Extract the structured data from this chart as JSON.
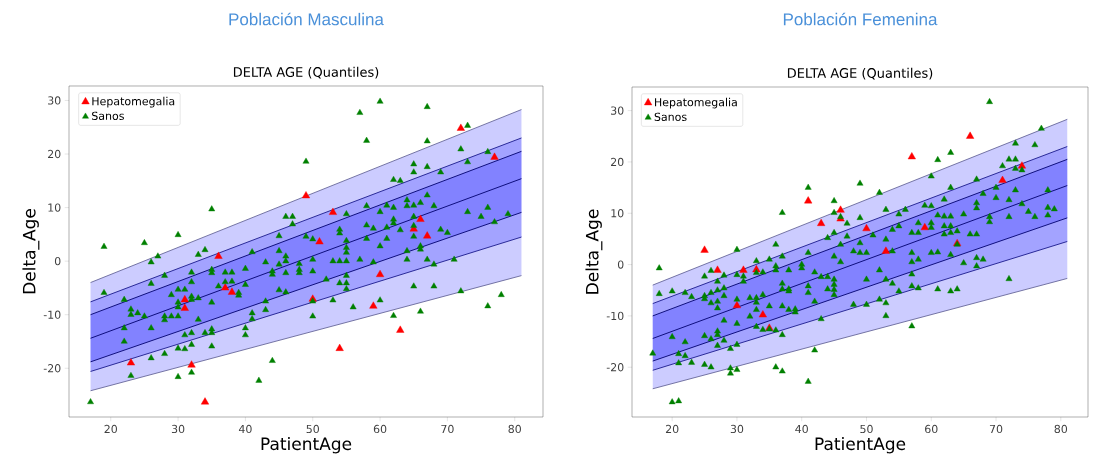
{
  "chart_data": [
    {
      "type": "scatter",
      "title": "Población Masculina",
      "subtitle": "DELTA AGE (Quantiles)",
      "xlabel": "PatientAge",
      "ylabel": "Delta_Age",
      "xlim": [
        13.8,
        84.2
      ],
      "ylim": [
        -29.1,
        32.7
      ],
      "xticks": [
        20,
        30,
        40,
        50,
        60,
        70,
        80
      ],
      "yticks": [
        -20,
        -10,
        0,
        10,
        20,
        30
      ],
      "legend": "top left",
      "series": [
        {
          "type": "line",
          "color": "#66669a",
          "x": [
            17,
            81
          ],
          "values": [
            -4,
            28.3
          ],
          "upper": [
            -4,
            28.3
          ],
          "lower": [
            -24.2,
            -2.7
          ]
        },
        {
          "type": "line",
          "color": "#1a1a8c",
          "x": [
            17,
            81
          ],
          "values": [
            -7.6,
            23
          ],
          "upper": [
            -7.6,
            23
          ],
          "lower": [
            -20.6,
            4.5
          ]
        },
        {
          "type": "line",
          "color": "#00006e",
          "x": [
            17,
            81
          ],
          "values": [
            -10,
            20.5
          ],
          "upper": [
            -10,
            20.5
          ],
          "lower": [
            -18.8,
            9.1
          ]
        },
        {
          "type": "line",
          "color": "#00006e",
          "x": [
            17,
            81
          ],
          "values": [
            -14.4,
            15.4
          ]
        },
        {
          "type": "line",
          "color": "#00006e",
          "x": [
            17,
            81
          ],
          "values": [
            -18.8,
            9.1
          ]
        },
        {
          "type": "line",
          "color": "#1a1a8c",
          "x": [
            17,
            81
          ],
          "values": [
            -20.6,
            4.5
          ]
        },
        {
          "type": "line",
          "color": "#66669a",
          "x": [
            17,
            81
          ],
          "values": [
            -24.2,
            -2.7
          ]
        },
        {
          "marker": "triangle",
          "name": "Hepatomegalia",
          "color": "#ff0000",
          "x": [
            23,
            31,
            31,
            32,
            34,
            36,
            37,
            38,
            49,
            53,
            51,
            50,
            59,
            60,
            54,
            72,
            77,
            66,
            67,
            65,
            63
          ],
          "values": [
            -19,
            -7.2,
            -8.8,
            -19.4,
            -26.3,
            0.9,
            -5,
            -5.8,
            12.2,
            9.1,
            3.6,
            -7.1,
            -8.4,
            -2.5,
            -16.3,
            24.8,
            19.4,
            7.8,
            4.7,
            6,
            -12.9
          ]
        },
        {
          "marker": "triangle",
          "name": "Sanos",
          "color": "#008000",
          "x": [
            17,
            19,
            19,
            22,
            22,
            22,
            23,
            23,
            24,
            25,
            25,
            26,
            26,
            26,
            26,
            23,
            27,
            28,
            28,
            28,
            28,
            29,
            29,
            30,
            30,
            30,
            30,
            30,
            30,
            30,
            31,
            31,
            31,
            32,
            32,
            32,
            32,
            32,
            32,
            32,
            33,
            33,
            33,
            34,
            34,
            35,
            35,
            35,
            35,
            35,
            35,
            35,
            36,
            60,
            57,
            58,
            49,
            46,
            47,
            47,
            45,
            49,
            50,
            55,
            58,
            60,
            58,
            59,
            58,
            60,
            54,
            54,
            55,
            55,
            55,
            41,
            45,
            43,
            46,
            46,
            48,
            50,
            53,
            54,
            55,
            57,
            59,
            37,
            38,
            40,
            44,
            44,
            45,
            46,
            48,
            48,
            50,
            37,
            38,
            40,
            39,
            39,
            52,
            54,
            55,
            55,
            55,
            45,
            46,
            43,
            43,
            41,
            41,
            40,
            40,
            50,
            50,
            53,
            56,
            60,
            44,
            42,
            67,
            73,
            67,
            72,
            76,
            73,
            65,
            65,
            67,
            69,
            62,
            63,
            67,
            64,
            64,
            65,
            66,
            61,
            68,
            62,
            62,
            62,
            61,
            63,
            65,
            65,
            65,
            69,
            70,
            73,
            75,
            76,
            77,
            79,
            61,
            66,
            66,
            64,
            64,
            67,
            68,
            71,
            65,
            68,
            72,
            78,
            76,
            62,
            66
          ],
          "values": [
            -26.3,
            2.7,
            -5.9,
            -7.2,
            -12.5,
            -15,
            -9,
            -10,
            -9.7,
            3.4,
            -10.3,
            -0.2,
            -4.2,
            -12.5,
            -18.1,
            -21.4,
            0.9,
            -2.7,
            -10.3,
            -11,
            -17.3,
            -6.3,
            -10.3,
            4.9,
            -5.3,
            -7.7,
            -8.6,
            -10.3,
            -16.3,
            -21.6,
            -5.3,
            -16.4,
            -13.8,
            -2.1,
            -3.9,
            -6.6,
            -7.2,
            -13.4,
            -15.6,
            -20.8,
            1.2,
            -6.9,
            -10.9,
            2.1,
            -13.4,
            9.7,
            -2.2,
            -1.6,
            -7.7,
            -12.7,
            -13.4,
            -15.9,
            -4.7,
            29.8,
            27.7,
            22.5,
            18.6,
            8.3,
            8.3,
            6.9,
            4.7,
            4.6,
            4.1,
            8.8,
            10.3,
            9.2,
            6.7,
            6.1,
            4.2,
            2.8,
            5.9,
            5.2,
            3.8,
            2.5,
            1.6,
            1.7,
            1.9,
            -0.2,
            0.9,
            0,
            -0.5,
            0.3,
            0,
            0,
            0,
            0.3,
            -0.2,
            -2.1,
            -2.1,
            -1.4,
            -1.9,
            -2.5,
            -0.6,
            -2.2,
            -1.6,
            -2.2,
            -1.9,
            -3.9,
            -3.8,
            -4.4,
            -5.9,
            -6.4,
            -3.4,
            -4.1,
            -2.7,
            -4.1,
            -5.2,
            -5.4,
            -5.8,
            -7.5,
            -9.1,
            -9.7,
            -10.8,
            -12.5,
            -13.8,
            -7.5,
            -10.3,
            -7.3,
            -8.6,
            -7.3,
            -18.6,
            -22.3,
            28.8,
            25.3,
            22.4,
            20.9,
            20.4,
            18.5,
            18.1,
            16.6,
            17.6,
            16.6,
            15.2,
            15,
            12.3,
            11.4,
            10.3,
            10.4,
            10.9,
            10.4,
            10.3,
            10,
            7.8,
            7.1,
            6.3,
            5.8,
            8.3,
            6.6,
            4.6,
            5.9,
            5.3,
            9.2,
            8.3,
            10,
            7.3,
            8.8,
            4.2,
            2.8,
            2.2,
            1.9,
            0.3,
            0.3,
            -0.6,
            0.3,
            -4.7,
            -4.7,
            -5.6,
            -6.3,
            -8.4,
            -10.2,
            -9.4
          ]
        }
      ]
    },
    {
      "type": "scatter",
      "title": "Población Femenina",
      "subtitle": "DELTA AGE (Quantiles)",
      "xlabel": "PatientAge",
      "ylabel": "Delta_Age",
      "xlim": [
        13.8,
        84.2
      ],
      "ylim": [
        -29.7,
        34.6
      ],
      "xticks": [
        20,
        30,
        40,
        50,
        60,
        70,
        80
      ],
      "yticks": [
        -20,
        -10,
        0,
        10,
        20,
        30
      ],
      "legend": "top left",
      "series": [
        {
          "type": "line",
          "color": "#66669a",
          "x": [
            17,
            81
          ],
          "values": [
            -4,
            28.3
          ],
          "upper": [
            -4,
            28.3
          ],
          "lower": [
            -24.2,
            -2.7
          ]
        },
        {
          "type": "line",
          "color": "#1a1a8c",
          "x": [
            17,
            81
          ],
          "values": [
            -7.6,
            23
          ],
          "upper": [
            -7.6,
            23
          ],
          "lower": [
            -20.6,
            4.5
          ]
        },
        {
          "type": "line",
          "color": "#00006e",
          "x": [
            17,
            81
          ],
          "values": [
            -10,
            20.5
          ],
          "upper": [
            -10,
            20.5
          ],
          "lower": [
            -18.8,
            9.1
          ]
        },
        {
          "type": "line",
          "color": "#00006e",
          "x": [
            17,
            81
          ],
          "values": [
            -14.4,
            15.4
          ]
        },
        {
          "type": "line",
          "color": "#00006e",
          "x": [
            17,
            81
          ],
          "values": [
            -18.8,
            9.1
          ]
        },
        {
          "type": "line",
          "color": "#1a1a8c",
          "x": [
            17,
            81
          ],
          "values": [
            -20.6,
            4.5
          ]
        },
        {
          "type": "line",
          "color": "#66669a",
          "x": [
            17,
            81
          ],
          "values": [
            -24.2,
            -2.7
          ]
        },
        {
          "marker": "triangle",
          "name": "Hepatomegalia",
          "color": "#ff0000",
          "x": [
            25,
            27,
            30,
            31,
            33,
            34,
            35,
            41,
            43,
            46,
            46,
            50,
            53,
            57,
            59,
            64,
            66,
            71,
            74
          ],
          "values": [
            2.8,
            -1.1,
            -8,
            -1.1,
            -1,
            -9.8,
            -12.4,
            12.4,
            8,
            10.6,
            8.9,
            7,
            2.6,
            21,
            7.2,
            4.1,
            25,
            16.4,
            19.2
          ]
        },
        {
          "marker": "triangle",
          "name": "Sanos",
          "color": "#008000",
          "x": [
            17,
            18,
            18,
            20,
            20,
            20,
            21,
            21,
            21,
            22,
            22,
            22,
            23,
            23,
            25,
            25,
            25,
            25,
            25,
            26,
            26,
            26,
            26,
            26,
            27,
            27,
            27,
            27,
            27,
            27,
            27,
            28,
            28,
            28,
            28,
            28,
            29,
            29,
            29,
            30,
            30,
            30,
            30,
            30,
            30,
            31,
            31,
            32,
            32,
            33,
            33,
            33,
            33,
            33,
            33,
            34,
            34,
            34,
            35,
            35,
            35,
            36,
            36,
            36,
            36,
            36,
            37,
            37,
            37,
            37,
            37,
            37,
            37,
            38,
            38,
            38,
            38,
            39,
            39,
            40,
            40,
            41,
            41,
            41,
            41,
            41,
            42,
            42,
            42,
            43,
            43,
            44,
            44,
            44,
            45,
            45,
            45,
            45,
            45,
            45,
            45,
            45,
            46,
            46,
            46,
            47,
            47,
            48,
            48,
            49,
            49,
            49,
            49,
            50,
            50,
            50,
            51,
            52,
            52,
            52,
            53,
            53,
            53,
            53,
            53,
            54,
            54,
            54,
            55,
            55,
            55,
            56,
            57,
            57,
            57,
            57,
            57,
            57,
            58,
            58,
            58,
            58,
            59,
            60,
            60,
            60,
            60,
            60,
            61,
            61,
            61,
            61,
            62,
            62,
            62,
            62,
            63,
            63,
            63,
            63,
            63,
            63,
            63,
            64,
            64,
            64,
            65,
            65,
            66,
            67,
            67,
            67,
            67,
            67,
            67,
            68,
            68,
            69,
            69,
            69,
            70,
            70,
            71,
            72,
            72,
            72,
            72,
            73,
            73,
            73,
            73,
            74,
            74,
            75,
            76,
            76,
            77,
            78,
            78,
            78,
            79
          ],
          "values": [
            -17.3,
            -0.7,
            -5.7,
            -5.2,
            -14.1,
            -26.8,
            -26.6,
            -19.2,
            -17.4,
            -5.5,
            -15.1,
            -17.8,
            -6.3,
            -19.1,
            -2.3,
            -6.1,
            -6.7,
            -13.9,
            -19.5,
            -1.2,
            -5.5,
            -7.5,
            -14.5,
            -20,
            -3.3,
            -5,
            -7.2,
            -8.5,
            -13,
            -13.7,
            -15.8,
            -2.1,
            -4.6,
            -6.1,
            -10.9,
            -14.8,
            -16.4,
            -20.2,
            -21.2,
            2.9,
            -2,
            -6.8,
            -11.5,
            -15.6,
            -20.5,
            -2.3,
            -3.3,
            -6.5,
            -10.1,
            0.7,
            -1.6,
            -6.5,
            -7.4,
            -8.8,
            -12.1,
            -1.5,
            -12.7,
            -5.9,
            1,
            -8.1,
            -12.6,
            3.9,
            -0.3,
            -1.1,
            -12.8,
            -20,
            10.1,
            1.6,
            -3.7,
            -4.8,
            -8.1,
            -13.7,
            -20.8,
            -1.1,
            -4.8,
            -5.2,
            -8.8,
            -8.7,
            -9.3,
            0,
            -0.7,
            15,
            2.3,
            -4.2,
            -5.5,
            -22.8,
            -1.5,
            -7.2,
            -16.7,
            -2.4,
            -10.6,
            5.2,
            -2.4,
            -4.8,
            12.4,
            10.1,
            6.2,
            1.6,
            -2.9,
            -3.9,
            -4.9,
            -5.9,
            9.3,
            3.9,
            0.5,
            8,
            5.5,
            2.6,
            -7.8,
            15.8,
            9.1,
            4.2,
            2.3,
            2.3,
            -2.9,
            -7.8,
            5.7,
            14,
            -1.1,
            -6.8,
            10.7,
            4.9,
            -2.9,
            -7.5,
            -10,
            6.8,
            2.6,
            -3.7,
            9.8,
            7.5,
            -5.2,
            10.7,
            6.2,
            2.3,
            0.5,
            -1.9,
            -4.2,
            -12,
            8.1,
            6.2,
            1,
            -4.6,
            11.5,
            17.2,
            11.4,
            8.1,
            7.2,
            2.3,
            20.4,
            9.6,
            2.4,
            -4.8,
            12.7,
            9.4,
            7.5,
            5.9,
            21.8,
            15,
            9.4,
            7.5,
            6.2,
            1.9,
            -5.2,
            6.5,
            3.9,
            -4.8,
            9.8,
            0.3,
            5.9,
            16.6,
            12,
            11,
            5.9,
            1.3,
            -0.3,
            13.8,
            1,
            31.7,
            9.3,
            8.3,
            15,
            13,
            19.2,
            20.5,
            12.6,
            9.3,
            -2.8,
            23.6,
            20.5,
            18.7,
            14.5,
            18.4,
            11.8,
            10.3,
            23.3,
            9.3,
            26.5,
            14.5,
            11.1,
            9.6,
            10.8
          ]
        }
      ]
    }
  ]
}
